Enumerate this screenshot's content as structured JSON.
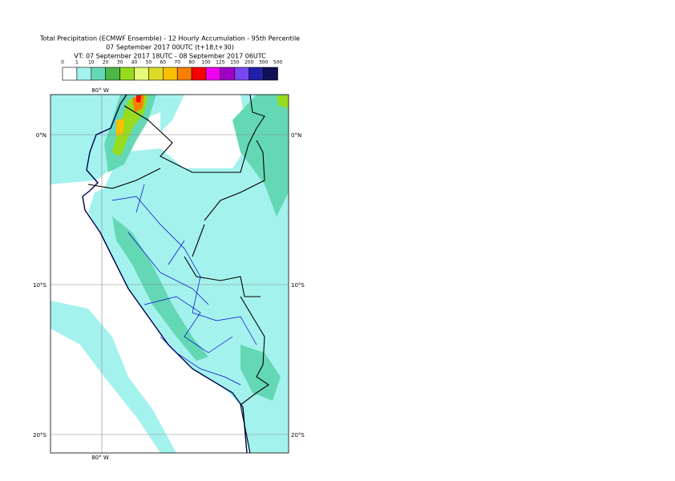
{
  "header": {
    "lines": [
      "Total Precipitation (ECMWF Ensemble) - 12 Hourly Accumulation - 95th Percentile",
      "07 September 2017 00UTC (t+18,t+30)",
      "VT: 07 September 2017 18UTC - 08 September 2017 06UTC"
    ]
  },
  "legend": {
    "labels": [
      "0",
      "1",
      "10",
      "20",
      "30",
      "40",
      "50",
      "60",
      "70",
      "80",
      "100",
      "125",
      "150",
      "200",
      "300",
      "500"
    ],
    "colors": [
      "#ffffff",
      "#a4f2ee",
      "#64d8b4",
      "#4cb848",
      "#96dc1c",
      "#e6fa78",
      "#dcdc28",
      "#f8c000",
      "#f88000",
      "#f80000",
      "#f000f0",
      "#a000c8",
      "#7848f0",
      "#2020a8",
      "#101058"
    ]
  },
  "map": {
    "lon_top": "80° W",
    "lon_bottom": "80° W",
    "lat_left": [
      "0°N",
      "10°S",
      "20°S"
    ],
    "lat_right": [
      "0°N",
      "10°S",
      "20°S"
    ]
  }
}
